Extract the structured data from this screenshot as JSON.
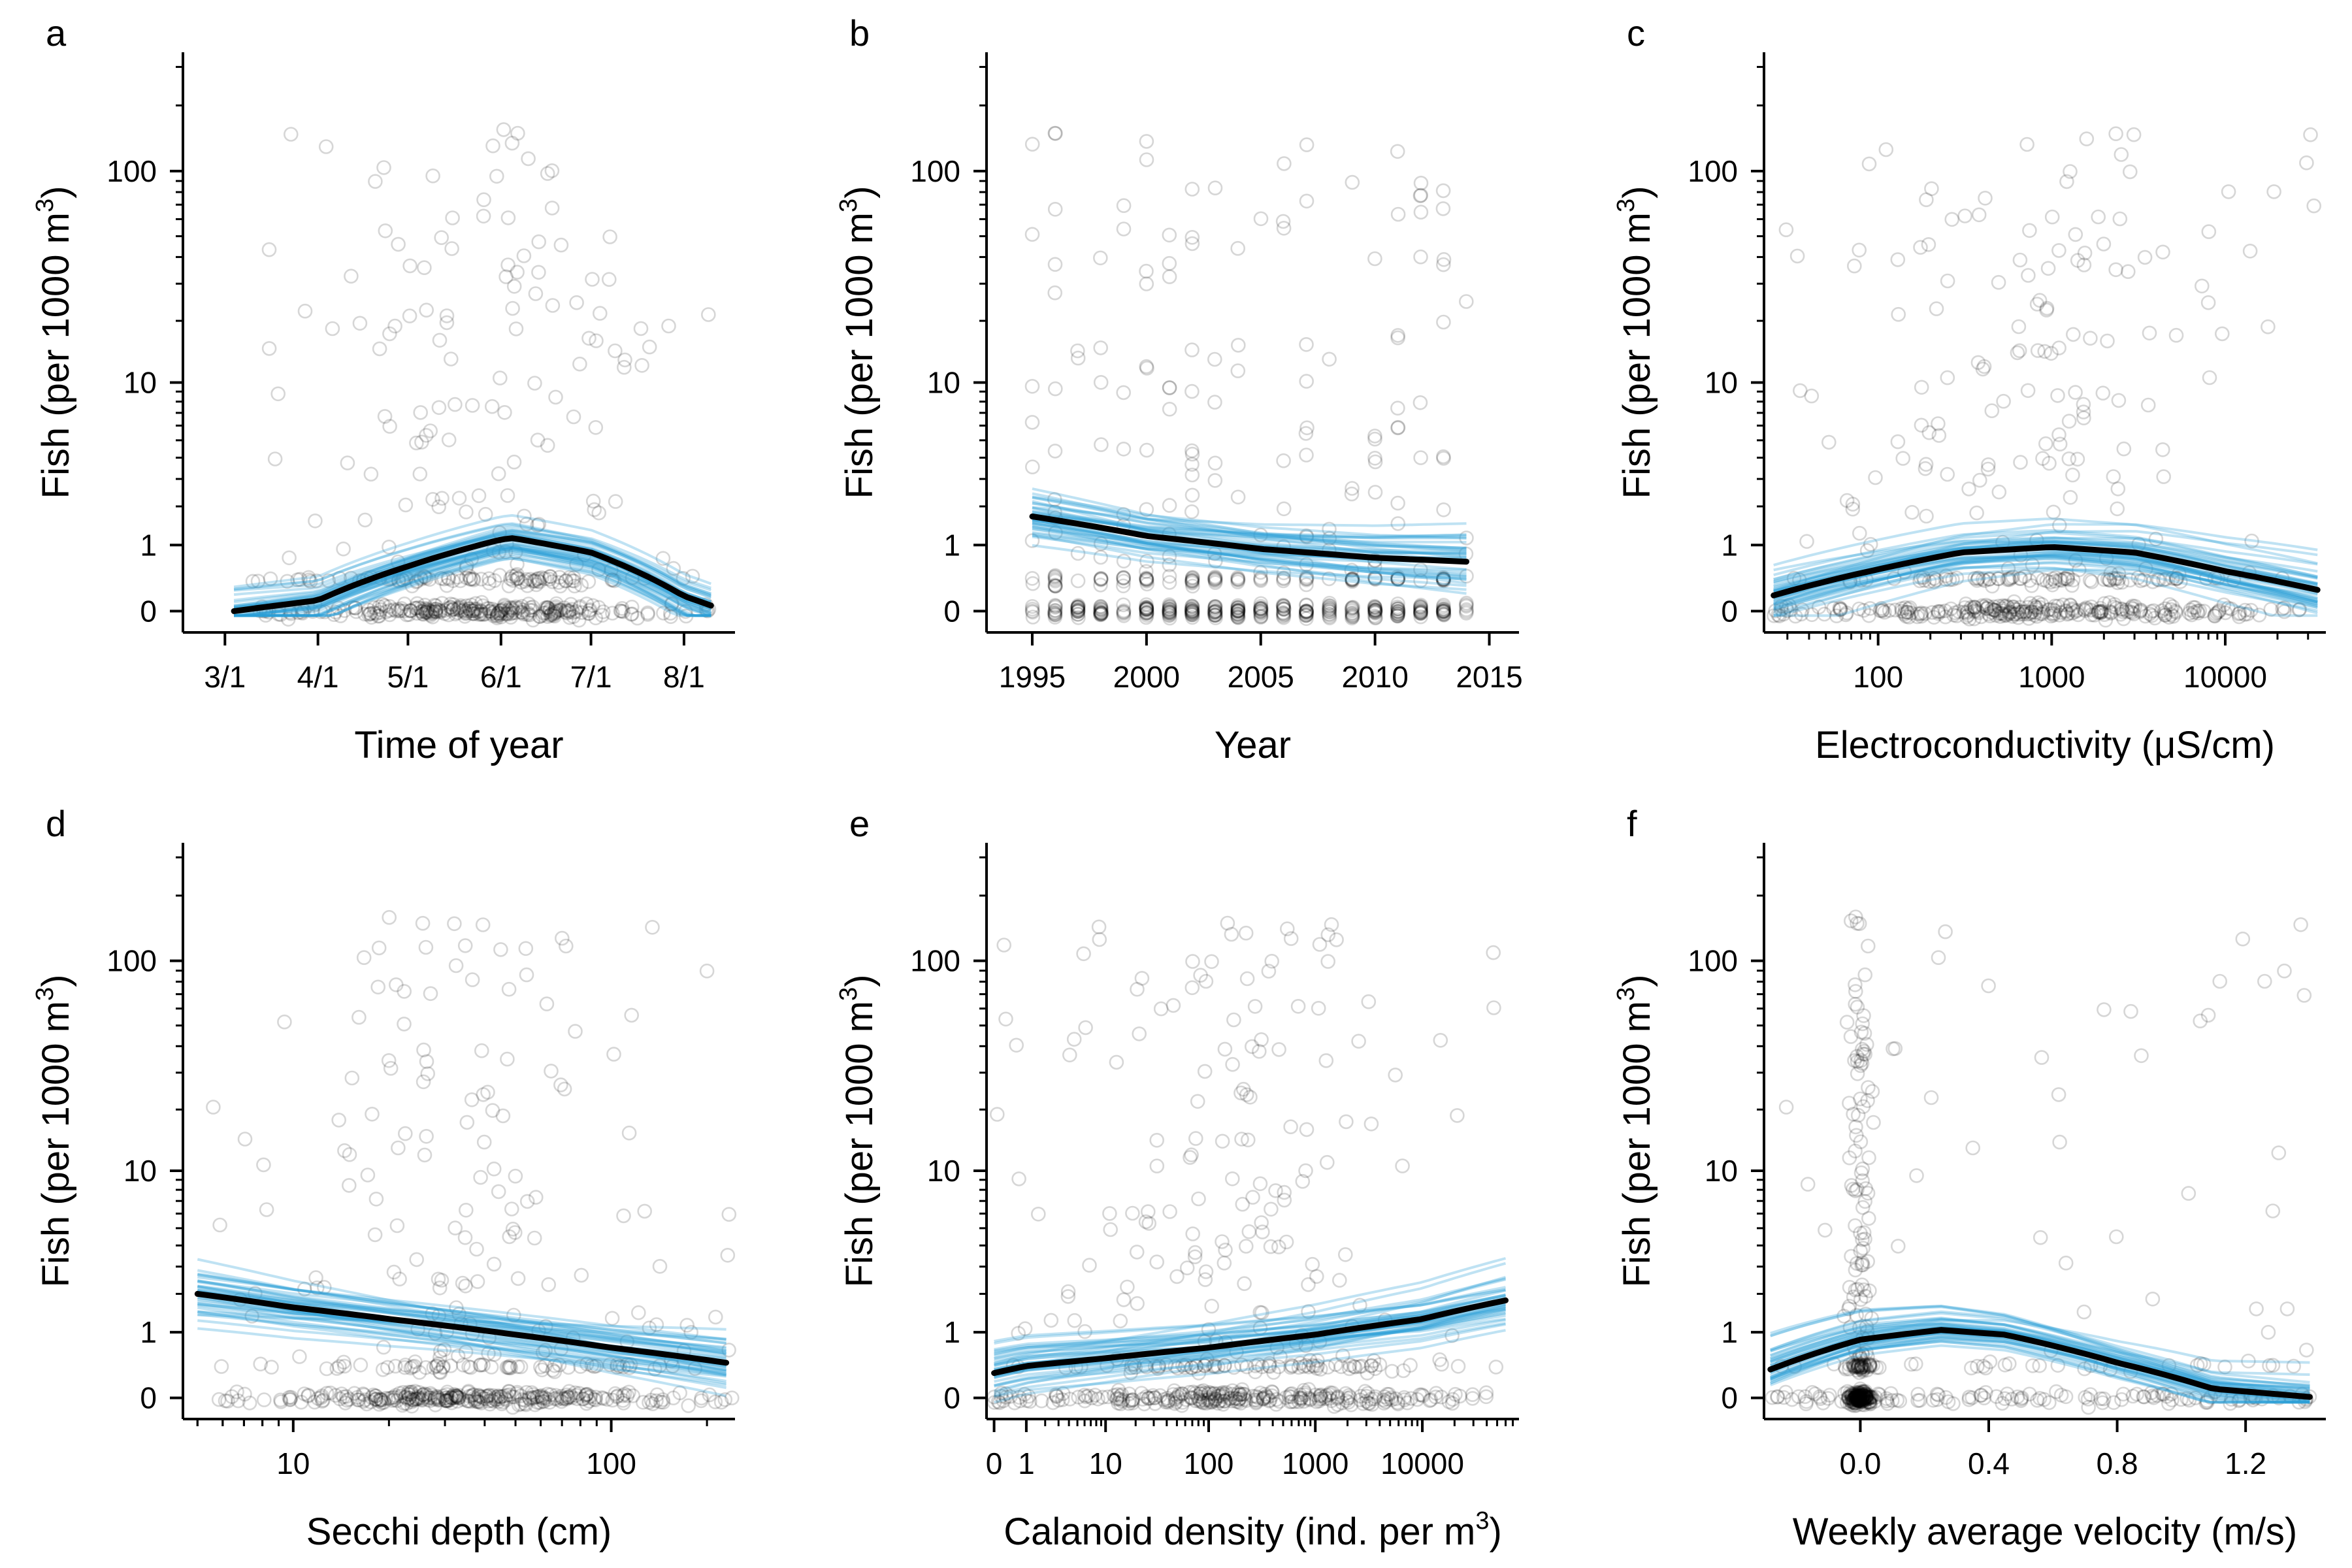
{
  "figure": {
    "colors": {
      "points": "#000000",
      "ensemble": "#2a9fd6",
      "fit": "#000000"
    },
    "y_axis": {
      "label": "Fish (per 1000 m",
      "label_superscript": "3",
      "label_close": ")",
      "scale": "log1p",
      "ticks": [
        0,
        1,
        10,
        100
      ],
      "tick_labels": [
        "0",
        "1",
        "10",
        "100"
      ]
    }
  },
  "chart_data": [
    {
      "letter": "a",
      "type": "scatter",
      "xlabel": "Time of year",
      "x_scale": "linear",
      "x_ticks": [
        "3/1",
        "4/1",
        "5/1",
        "6/1",
        "7/1",
        "8/1"
      ],
      "x_tick_values": [
        "Mar 1",
        "Apr 1",
        "May 1",
        "Jun 1",
        "Jul 1",
        "Aug 1"
      ],
      "x_range": [
        "Feb 15",
        "Aug 18"
      ],
      "y_range": [
        -0.2,
        350
      ],
      "points": {
        "x_range": [
          "Mar 10",
          "Aug 10"
        ],
        "count_shown": 520,
        "max_y": 160
      },
      "fit_line": {
        "x": [
          "Mar 4",
          "Apr 1",
          "May 1",
          "Jun 1",
          "Jun 5",
          "Jul 1",
          "Aug 1",
          "Aug 10"
        ],
        "y": [
          0.0,
          0.12,
          0.6,
          1.12,
          1.15,
          0.85,
          0.17,
          0.06
        ]
      },
      "grid": false
    },
    {
      "letter": "b",
      "type": "scatter",
      "xlabel": "Year",
      "x_scale": "linear",
      "x_ticks": [
        "1995",
        "2000",
        "2005",
        "2010",
        "2015"
      ],
      "x_tick_values": [
        1995,
        2000,
        2005,
        2010,
        2015
      ],
      "x_range": [
        1993.0,
        2016.3
      ],
      "y_range": [
        -0.2,
        350
      ],
      "points": {
        "x_range": [
          1995,
          2014
        ],
        "count_shown": 520,
        "max_y": 160
      },
      "fit_line": {
        "x": [
          1995,
          2000,
          2005,
          2010,
          2014
        ],
        "y": [
          1.7,
          1.2,
          0.92,
          0.75,
          0.68
        ]
      },
      "grid": false
    },
    {
      "letter": "c",
      "type": "scatter",
      "xlabel": "Electroconductivity (μS/cm)",
      "x_scale": "log",
      "x_ticks": [
        "100",
        "1000",
        "10000"
      ],
      "x_tick_values": [
        100,
        1000,
        10000
      ],
      "x_range": [
        22,
        38000
      ],
      "y_range": [
        -0.2,
        350
      ],
      "points": {
        "x_range": [
          25,
          35000
        ],
        "count_shown": 520,
        "max_y": 160
      },
      "fit_line": {
        "x": [
          25,
          100,
          300,
          1000,
          3000,
          10000,
          34000
        ],
        "y": [
          0.18,
          0.55,
          0.85,
          0.96,
          0.85,
          0.52,
          0.25
        ]
      },
      "grid": false
    },
    {
      "letter": "d",
      "type": "scatter",
      "xlabel": "Secchi depth (cm)",
      "x_scale": "log",
      "x_ticks": [
        "10",
        "100"
      ],
      "x_tick_values": [
        10,
        100
      ],
      "x_range": [
        4.5,
        245
      ],
      "y_range": [
        -0.2,
        350
      ],
      "points": {
        "x_range": [
          5,
          240
        ],
        "count_shown": 520,
        "max_y": 160
      },
      "fit_line": {
        "x": [
          5,
          10,
          20,
          50,
          100,
          230
        ],
        "y": [
          2.0,
          1.6,
          1.3,
          0.95,
          0.7,
          0.45
        ]
      },
      "grid": false
    },
    {
      "letter": "e",
      "type": "scatter",
      "xlabel": "Calanoid density (ind. per m",
      "xlabel_superscript": "3",
      "xlabel_close": ")",
      "x_scale": "log1p",
      "x_ticks": [
        "0",
        "1",
        "10",
        "100",
        "1000",
        "10000"
      ],
      "x_tick_values": [
        0,
        1,
        10,
        100,
        1000,
        10000
      ],
      "x_range": [
        -0.15,
        80000
      ],
      "y_range": [
        -0.2,
        350
      ],
      "points": {
        "x_range": [
          0,
          60000
        ],
        "count_shown": 520,
        "max_y": 160
      },
      "fit_line": {
        "x": [
          0,
          1,
          10,
          100,
          1000,
          10000,
          60000
        ],
        "y": [
          0.3,
          0.4,
          0.52,
          0.7,
          0.95,
          1.3,
          1.8
        ]
      },
      "grid": false
    },
    {
      "letter": "f",
      "type": "scatter",
      "xlabel": "Weekly average velocity (m/s)",
      "x_scale": "linear",
      "x_ticks": [
        "0.0",
        "0.4",
        "0.8",
        "1.2"
      ],
      "x_tick_values": [
        0.0,
        0.4,
        0.8,
        1.2
      ],
      "x_range": [
        -0.3,
        1.45
      ],
      "y_range": [
        -0.2,
        350
      ],
      "points": {
        "x_range": [
          -0.28,
          1.4
        ],
        "count_shown": 520,
        "max_y": 160
      },
      "fit_line": {
        "x": [
          -0.28,
          0.0,
          0.25,
          0.45,
          0.8,
          1.1,
          1.4
        ],
        "y": [
          0.35,
          0.85,
          1.05,
          0.95,
          0.45,
          0.1,
          0.01
        ]
      },
      "grid": false
    }
  ]
}
